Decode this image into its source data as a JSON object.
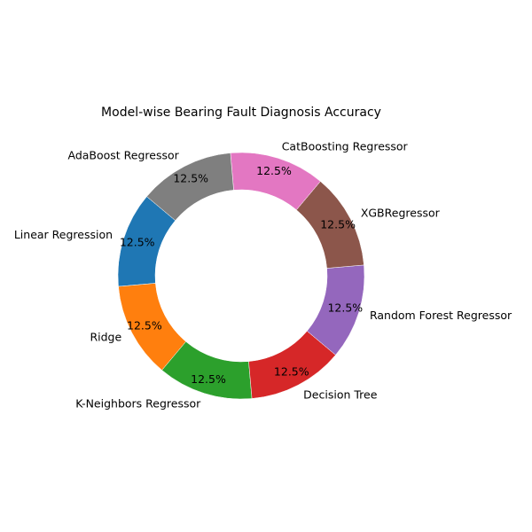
{
  "chart_data": {
    "type": "pie",
    "title": "Model-wise Bearing Fault Diagnosis Accuracy",
    "donut": true,
    "categories": [
      "Linear Regression",
      "Ridge",
      "K-Neighbors Regressor",
      "Decision Tree",
      "Random Forest Regressor",
      "XGBRegressor",
      "CatBoosting Regressor",
      "AdaBoost Regressor"
    ],
    "values": [
      12.5,
      12.5,
      12.5,
      12.5,
      12.5,
      12.5,
      12.5,
      12.5
    ],
    "value_labels": [
      "12.5%",
      "12.5%",
      "12.5%",
      "12.5%",
      "12.5%",
      "12.5%",
      "12.5%",
      "12.5%"
    ],
    "colors": [
      "#1f77b4",
      "#ff7f0e",
      "#2ca02c",
      "#d62728",
      "#9467bd",
      "#8c564b",
      "#e377c2",
      "#7f7f7f"
    ],
    "start_angle_deg": 140,
    "direction": "counterclockwise",
    "legend": "none"
  }
}
